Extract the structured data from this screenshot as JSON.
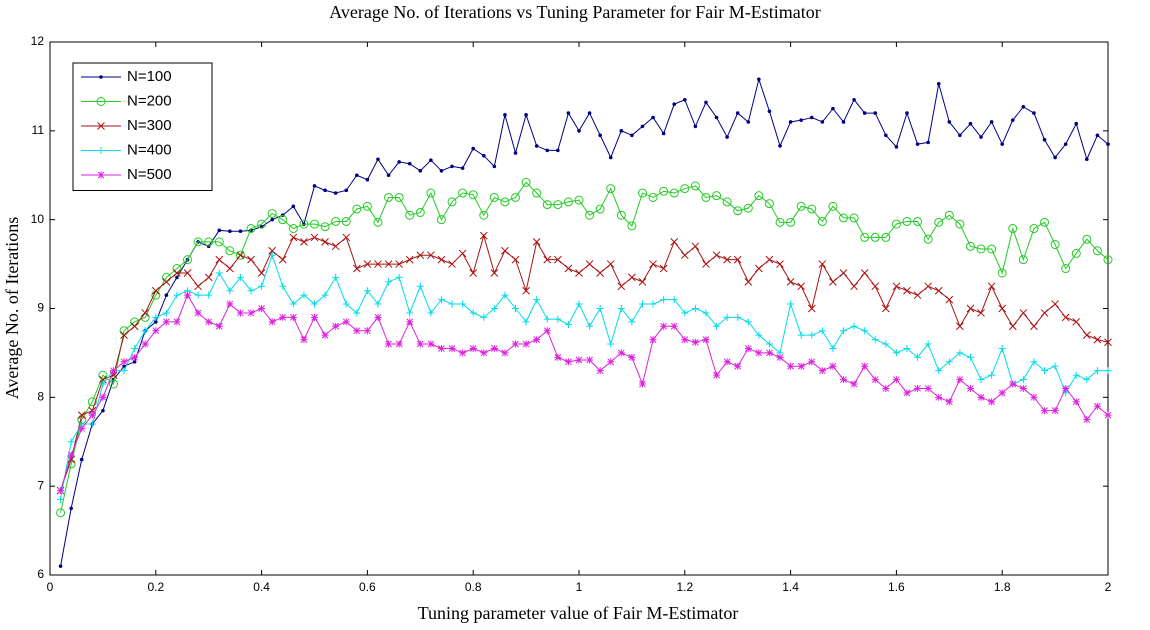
{
  "chart_data": {
    "type": "line",
    "title": "Average No. of Iterations vs Tuning Parameter for Fair M-Estimator",
    "x_label": "Tuning parameter value of Fair M-Estimator",
    "y_label": "Average No. of Iterations",
    "x": [
      0.02,
      0.04,
      0.06,
      0.08,
      0.1,
      0.12,
      0.14,
      0.16,
      0.18,
      0.2,
      0.22,
      0.24,
      0.26,
      0.28,
      0.3,
      0.32,
      0.34,
      0.36,
      0.38,
      0.4,
      0.42,
      0.44,
      0.46,
      0.48,
      0.5,
      0.52,
      0.54,
      0.56,
      0.58,
      0.6,
      0.62,
      0.64,
      0.66,
      0.68,
      0.7,
      0.72,
      0.74,
      0.76,
      0.78,
      0.8,
      0.82,
      0.84,
      0.86,
      0.88,
      0.9,
      0.92,
      0.94,
      0.96,
      0.98,
      1.0,
      1.02,
      1.04,
      1.06,
      1.08,
      1.1,
      1.12,
      1.14,
      1.16,
      1.18,
      1.2,
      1.22,
      1.24,
      1.26,
      1.28,
      1.3,
      1.32,
      1.34,
      1.36,
      1.38,
      1.4,
      1.42,
      1.44,
      1.46,
      1.48,
      1.5,
      1.52,
      1.54,
      1.56,
      1.58,
      1.6,
      1.62,
      1.64,
      1.66,
      1.68,
      1.7,
      1.72,
      1.74,
      1.76,
      1.78,
      1.8,
      1.82,
      1.84,
      1.86,
      1.88,
      1.9,
      1.92,
      1.94,
      1.96,
      1.98,
      2.0
    ],
    "series": [
      {
        "name": "N=100",
        "color": "#000080",
        "marker": "dot",
        "values": [
          6.1,
          6.75,
          7.3,
          7.7,
          7.85,
          8.2,
          8.35,
          8.4,
          8.75,
          8.85,
          9.15,
          9.35,
          9.55,
          9.75,
          9.7,
          9.88,
          9.87,
          9.87,
          9.88,
          9.92,
          10.0,
          10.05,
          10.15,
          9.95,
          10.38,
          10.33,
          10.3,
          10.33,
          10.5,
          10.45,
          10.68,
          10.5,
          10.65,
          10.63,
          10.55,
          10.67,
          10.55,
          10.6,
          10.58,
          10.8,
          10.72,
          10.6,
          11.18,
          10.75,
          11.18,
          10.83,
          10.78,
          10.78,
          11.2,
          11.0,
          11.2,
          10.95,
          10.7,
          11.0,
          10.95,
          11.05,
          11.15,
          10.97,
          11.3,
          11.35,
          11.05,
          11.32,
          11.15,
          10.93,
          11.2,
          11.1,
          11.58,
          11.22,
          10.83,
          11.1,
          11.12,
          11.15,
          11.1,
          11.25,
          11.1,
          11.35,
          11.2,
          11.2,
          10.95,
          10.82,
          11.2,
          10.85,
          10.87,
          11.53,
          11.1,
          10.95,
          11.08,
          10.93,
          11.1,
          10.85,
          11.12,
          11.27,
          11.2,
          10.9,
          10.7,
          10.85,
          11.08,
          10.68,
          10.95,
          10.85
        ]
      },
      {
        "name": "N=200",
        "color": "#22cc22",
        "marker": "circle",
        "values": [
          6.7,
          7.25,
          7.75,
          7.95,
          8.25,
          8.15,
          8.75,
          8.85,
          8.9,
          9.15,
          9.35,
          9.45,
          9.55,
          9.75,
          9.75,
          9.75,
          9.65,
          9.6,
          9.9,
          9.95,
          10.07,
          10.0,
          9.9,
          9.95,
          9.95,
          9.92,
          9.98,
          9.98,
          10.12,
          10.15,
          9.97,
          10.25,
          10.25,
          10.05,
          10.08,
          10.3,
          10.0,
          10.2,
          10.3,
          10.28,
          10.05,
          10.25,
          10.2,
          10.25,
          10.42,
          10.3,
          10.17,
          10.17,
          10.2,
          10.22,
          10.05,
          10.12,
          10.35,
          10.05,
          9.93,
          10.3,
          10.25,
          10.32,
          10.3,
          10.35,
          10.38,
          10.25,
          10.27,
          10.2,
          10.1,
          10.13,
          10.27,
          10.18,
          9.97,
          9.97,
          10.15,
          10.12,
          9.98,
          10.15,
          10.02,
          10.02,
          9.8,
          9.8,
          9.8,
          9.95,
          9.98,
          9.98,
          9.78,
          9.97,
          10.05,
          9.95,
          9.7,
          9.67,
          9.67,
          9.4,
          9.9,
          9.55,
          9.9,
          9.97,
          9.72,
          9.45,
          9.62,
          9.78,
          9.65,
          9.55
        ]
      },
      {
        "name": "N=300",
        "color": "#aa1111",
        "marker": "x",
        "values": [
          6.95,
          7.3,
          7.8,
          7.85,
          8.2,
          8.25,
          8.7,
          8.8,
          8.95,
          9.2,
          9.3,
          9.4,
          9.4,
          9.25,
          9.35,
          9.55,
          9.45,
          9.6,
          9.55,
          9.4,
          9.65,
          9.55,
          9.8,
          9.75,
          9.8,
          9.75,
          9.7,
          9.8,
          9.45,
          9.5,
          9.5,
          9.5,
          9.5,
          9.55,
          9.6,
          9.6,
          9.55,
          9.5,
          9.62,
          9.4,
          9.82,
          9.4,
          9.65,
          9.55,
          9.2,
          9.75,
          9.55,
          9.55,
          9.45,
          9.4,
          9.5,
          9.4,
          9.5,
          9.25,
          9.35,
          9.3,
          9.5,
          9.45,
          9.75,
          9.6,
          9.7,
          9.5,
          9.6,
          9.55,
          9.55,
          9.3,
          9.45,
          9.55,
          9.5,
          9.3,
          9.25,
          9.0,
          9.5,
          9.3,
          9.4,
          9.25,
          9.4,
          9.25,
          9.0,
          9.25,
          9.2,
          9.15,
          9.25,
          9.2,
          9.1,
          8.8,
          9.0,
          8.95,
          9.25,
          9.0,
          8.8,
          8.95,
          8.8,
          8.95,
          9.05,
          8.9,
          8.85,
          8.7,
          8.65,
          8.62
        ]
      },
      {
        "name": "N=400",
        "color": "#00dde8",
        "marker": "plus",
        "values": [
          6.85,
          7.5,
          7.7,
          7.7,
          8.15,
          8.3,
          8.3,
          8.55,
          8.75,
          8.9,
          8.95,
          9.15,
          9.2,
          9.15,
          9.15,
          9.4,
          9.2,
          9.35,
          9.2,
          9.25,
          9.6,
          9.25,
          9.05,
          9.15,
          9.05,
          9.15,
          9.35,
          9.05,
          8.95,
          9.2,
          9.05,
          9.3,
          9.35,
          8.95,
          9.25,
          8.95,
          9.1,
          9.05,
          9.05,
          8.95,
          8.9,
          9.0,
          9.15,
          9.0,
          8.85,
          9.1,
          8.88,
          8.88,
          8.82,
          9.05,
          8.8,
          9.0,
          8.6,
          9.0,
          8.85,
          9.05,
          9.05,
          9.1,
          9.1,
          8.95,
          9.0,
          8.95,
          8.8,
          8.9,
          8.9,
          8.85,
          8.7,
          8.6,
          8.5,
          9.05,
          8.7,
          8.7,
          8.75,
          8.55,
          8.75,
          8.8,
          8.75,
          8.65,
          8.6,
          8.5,
          8.55,
          8.45,
          8.6,
          8.3,
          8.4,
          8.5,
          8.45,
          8.2,
          8.25,
          8.55,
          8.15,
          8.2,
          8.4,
          8.3,
          8.35,
          8.05,
          8.25,
          8.2,
          8.3,
          8.3
        ]
      },
      {
        "name": "N=500",
        "color": "#dd22dd",
        "marker": "star",
        "values": [
          6.95,
          7.35,
          7.65,
          7.8,
          8.0,
          8.3,
          8.4,
          8.45,
          8.6,
          8.75,
          8.85,
          8.85,
          9.15,
          8.95,
          8.85,
          8.8,
          9.05,
          8.95,
          8.95,
          9.0,
          8.85,
          8.9,
          8.9,
          8.65,
          8.9,
          8.7,
          8.8,
          8.85,
          8.75,
          8.75,
          8.9,
          8.6,
          8.6,
          8.85,
          8.6,
          8.6,
          8.55,
          8.55,
          8.5,
          8.55,
          8.5,
          8.55,
          8.5,
          8.6,
          8.6,
          8.65,
          8.75,
          8.45,
          8.4,
          8.42,
          8.42,
          8.3,
          8.4,
          8.5,
          8.45,
          8.15,
          8.65,
          8.8,
          8.8,
          8.65,
          8.62,
          8.65,
          8.25,
          8.4,
          8.35,
          8.55,
          8.5,
          8.5,
          8.45,
          8.35,
          8.35,
          8.4,
          8.3,
          8.35,
          8.2,
          8.15,
          8.35,
          8.2,
          8.1,
          8.2,
          8.05,
          8.1,
          8.1,
          8.0,
          7.95,
          8.2,
          8.1,
          8.0,
          7.95,
          8.05,
          8.15,
          8.1,
          8.0,
          7.85,
          7.85,
          8.1,
          7.95,
          7.75,
          7.9,
          7.8
        ]
      }
    ],
    "xlim": [
      0,
      2
    ],
    "ylim": [
      6,
      12
    ],
    "xticks": [
      0,
      0.2,
      0.4,
      0.6,
      0.8,
      1,
      1.2,
      1.4,
      1.6,
      1.8,
      2
    ],
    "yticks": [
      6,
      7,
      8,
      9,
      10,
      11,
      12
    ],
    "legend": "upper left",
    "grid": false
  }
}
